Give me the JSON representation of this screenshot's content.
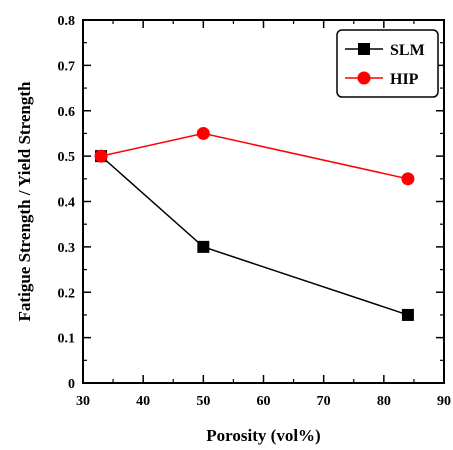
{
  "chart_data": {
    "type": "line",
    "xlabel": "Porosity (vol%)",
    "ylabel": "Fatigue Strength / Yield Strength",
    "xlim": [
      30,
      90
    ],
    "ylim": [
      0,
      0.8
    ],
    "xticks": [
      30,
      40,
      50,
      60,
      70,
      80,
      90
    ],
    "yticks": [
      0,
      0.1,
      0.2,
      0.3,
      0.4,
      0.5,
      0.6,
      0.7,
      0.8
    ],
    "xtick_labels": [
      "30",
      "40",
      "50",
      "60",
      "70",
      "80",
      "90"
    ],
    "ytick_labels": [
      "0",
      "0.1",
      "0.2",
      "0.3",
      "0.4",
      "0.5",
      "0.6",
      "0.7",
      "0.8"
    ],
    "grid": false,
    "legend_position": "top-right",
    "series": [
      {
        "name": "SLM",
        "color": "#000000",
        "marker": "square",
        "x": [
          33,
          50,
          84
        ],
        "y": [
          0.5,
          0.3,
          0.15
        ]
      },
      {
        "name": "HIP",
        "color": "#ff0000",
        "marker": "circle",
        "x": [
          33,
          50,
          84
        ],
        "y": [
          0.5,
          0.55,
          0.45
        ]
      }
    ]
  }
}
